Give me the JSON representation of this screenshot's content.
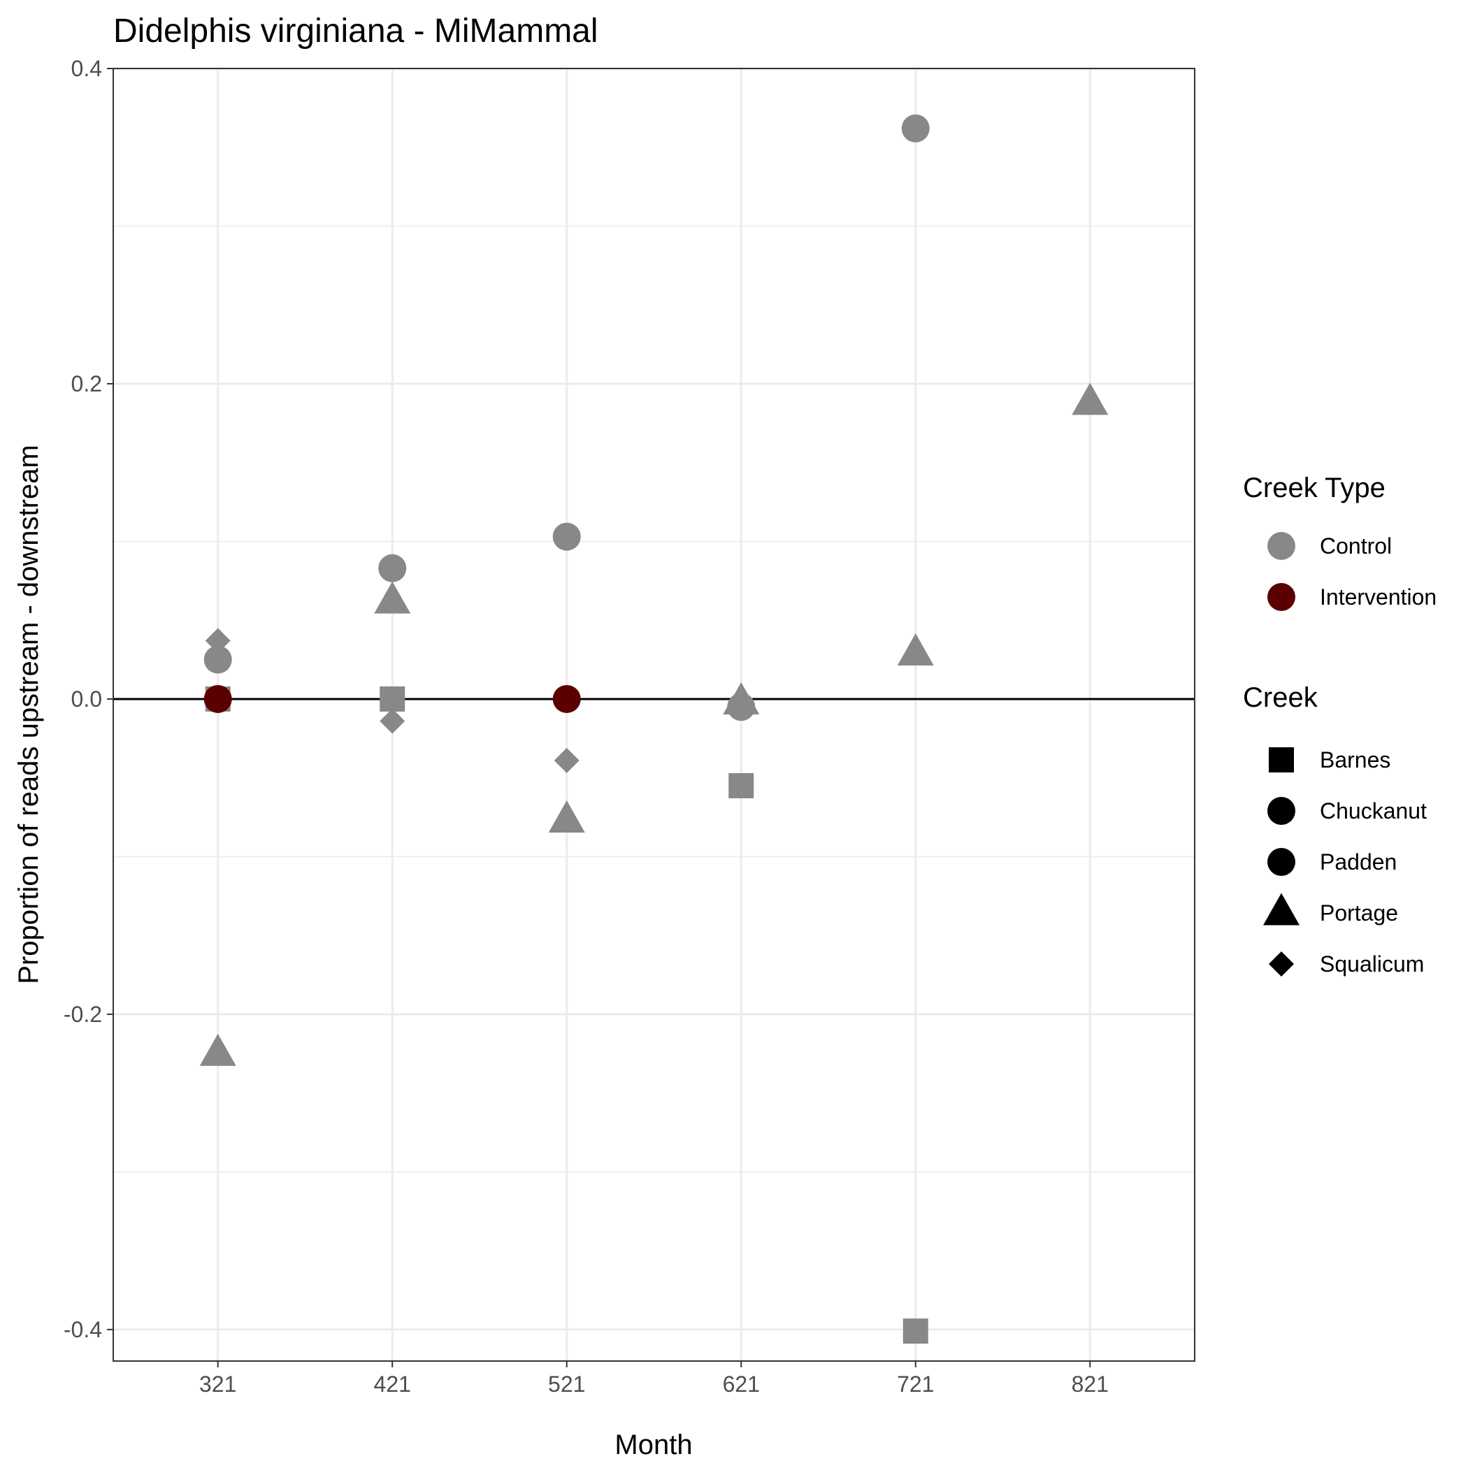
{
  "chart_data": {
    "type": "scatter",
    "title": "Didelphis virginiana - MiMammal",
    "xlabel": "Month",
    "ylabel": "Proportion of reads upstream - downstream",
    "x_ticks": [
      "321",
      "421",
      "521",
      "621",
      "721",
      "821"
    ],
    "y_ticks": [
      "-0.4",
      "-0.2",
      "0.0",
      "0.2",
      "0.4"
    ],
    "y_tick_values": [
      -0.4,
      -0.2,
      0.0,
      0.2,
      0.4
    ],
    "xlim": [
      261,
      881
    ],
    "ylim": [
      -0.42,
      0.4
    ],
    "grid": true,
    "reference_line_y": 0,
    "legend_placement": "right",
    "colors": {
      "Control": "#888888",
      "Intervention": "#5a0000",
      "legend_shape": "#000000"
    },
    "color_legend": {
      "title": "Creek Type",
      "entries": [
        {
          "label": "Control",
          "color": "#888888"
        },
        {
          "label": "Intervention",
          "color": "#5a0000"
        }
      ]
    },
    "shape_legend": {
      "title": "Creek",
      "entries": [
        {
          "label": "Barnes",
          "shape": "square"
        },
        {
          "label": "Chuckanut",
          "shape": "circle"
        },
        {
          "label": "Padden",
          "shape": "circle"
        },
        {
          "label": "Portage",
          "shape": "triangle"
        },
        {
          "label": "Squalicum",
          "shape": "diamond"
        }
      ]
    },
    "points": [
      {
        "x": 321,
        "y": 0.037,
        "creek": "Squalicum",
        "type": "Control"
      },
      {
        "x": 321,
        "y": 0.025,
        "creek": "Chuckanut",
        "type": "Control"
      },
      {
        "x": 321,
        "y": 0.0,
        "creek": "Barnes",
        "type": "Control"
      },
      {
        "x": 321,
        "y": 0.0,
        "creek": "Padden",
        "type": "Intervention"
      },
      {
        "x": 321,
        "y": -0.225,
        "creek": "Portage",
        "type": "Control"
      },
      {
        "x": 421,
        "y": 0.083,
        "creek": "Chuckanut",
        "type": "Control"
      },
      {
        "x": 421,
        "y": 0.062,
        "creek": "Portage",
        "type": "Control"
      },
      {
        "x": 421,
        "y": 0.0,
        "creek": "Barnes",
        "type": "Control"
      },
      {
        "x": 421,
        "y": -0.014,
        "creek": "Squalicum",
        "type": "Control"
      },
      {
        "x": 521,
        "y": 0.103,
        "creek": "Chuckanut",
        "type": "Control"
      },
      {
        "x": 521,
        "y": 0.0,
        "creek": "Padden",
        "type": "Intervention"
      },
      {
        "x": 521,
        "y": -0.039,
        "creek": "Squalicum",
        "type": "Control"
      },
      {
        "x": 521,
        "y": -0.077,
        "creek": "Portage",
        "type": "Control"
      },
      {
        "x": 621,
        "y": -0.005,
        "creek": "Chuckanut",
        "type": "Control"
      },
      {
        "x": 621,
        "y": -0.002,
        "creek": "Portage",
        "type": "Control"
      },
      {
        "x": 621,
        "y": -0.055,
        "creek": "Barnes",
        "type": "Control"
      },
      {
        "x": 721,
        "y": 0.362,
        "creek": "Chuckanut",
        "type": "Control"
      },
      {
        "x": 721,
        "y": 0.029,
        "creek": "Portage",
        "type": "Control"
      },
      {
        "x": 721,
        "y": -0.401,
        "creek": "Barnes",
        "type": "Control"
      },
      {
        "x": 821,
        "y": 0.188,
        "creek": "Portage",
        "type": "Control"
      }
    ]
  }
}
